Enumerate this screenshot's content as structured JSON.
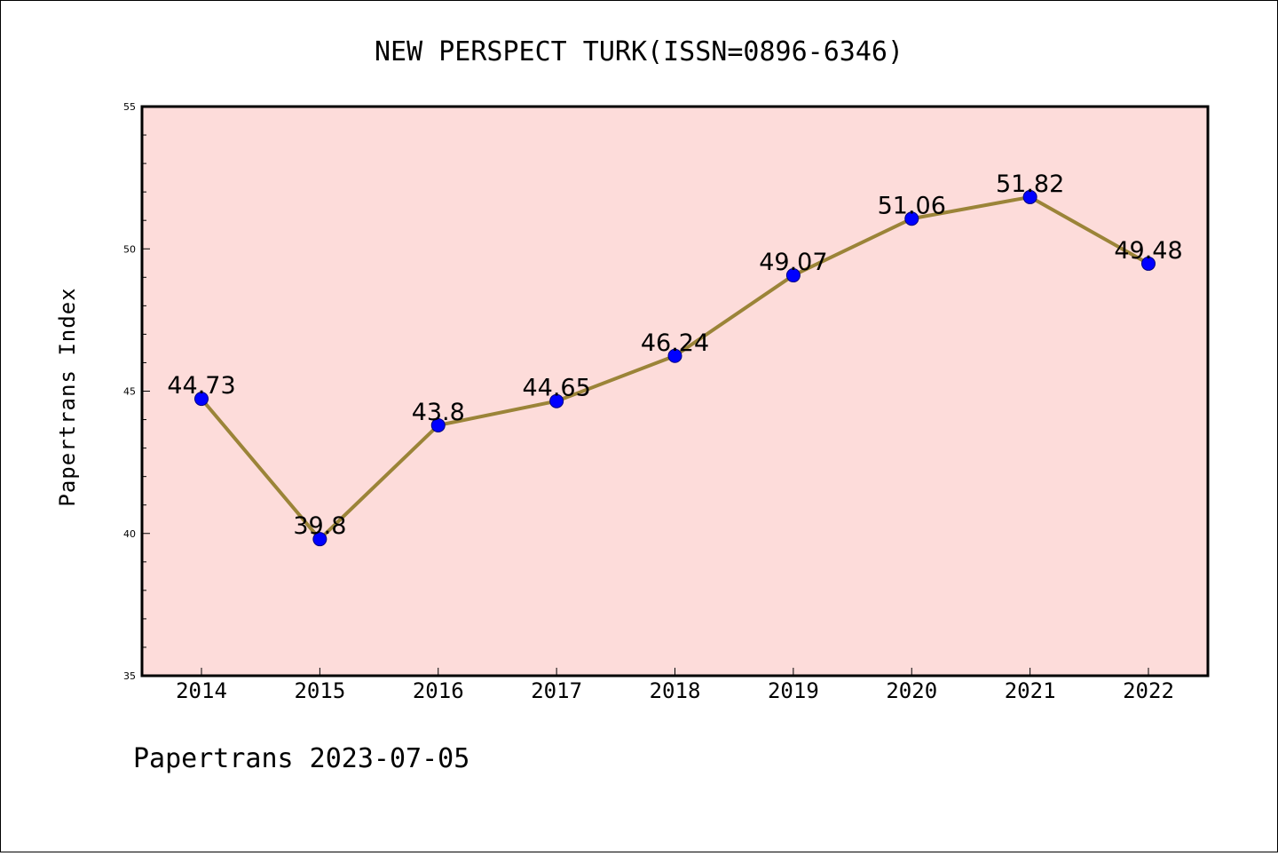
{
  "title": "NEW PERSPECT TURK(ISSN=0896-6346)",
  "footer": "Papertrans 2023-07-05",
  "colors": {
    "plot_background": "#fddcda",
    "line": "#9b8438",
    "marker": "#0000ff",
    "marker_edge": "#000080"
  },
  "chart_data": {
    "type": "line",
    "title": "NEW PERSPECT TURK(ISSN=0896-6346)",
    "xlabel": "",
    "ylabel": "Papertrans Index",
    "categories": [
      "2014",
      "2015",
      "2016",
      "2017",
      "2018",
      "2019",
      "2020",
      "2021",
      "2022"
    ],
    "values": [
      44.73,
      39.8,
      43.8,
      44.65,
      46.24,
      49.07,
      51.06,
      51.82,
      49.48
    ],
    "data_labels": [
      "44.73",
      "39.8",
      "43.8",
      "44.65",
      "46.24",
      "49.07",
      "51.06",
      "51.82",
      "49.48"
    ],
    "ylim": [
      35,
      55
    ],
    "yticks": [
      "35",
      "40",
      "45",
      "50",
      "55"
    ],
    "ytick_values": [
      35,
      40,
      45,
      50,
      55
    ],
    "grid": false,
    "legend": "none"
  }
}
